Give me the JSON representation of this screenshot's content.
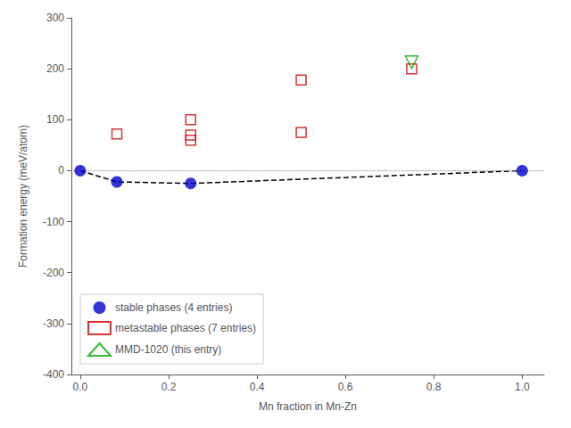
{
  "chart_data": {
    "type": "scatter",
    "xlabel": "Mn fraction in Mn-Zn",
    "ylabel": "Formation energy (meV/atom)",
    "xlim": [
      -0.02,
      1.05
    ],
    "ylim": [
      -400,
      300
    ],
    "xticks": [
      {
        "value": 0.0,
        "label": "0.0"
      },
      0.2,
      0.4,
      0.6,
      0.8,
      {
        "value": 1.0,
        "label": "1.0"
      }
    ],
    "yticks": [
      -400,
      -300,
      -200,
      -100,
      0,
      100,
      200,
      300
    ],
    "grid": false,
    "legend": "lower left",
    "hlines": [
      {
        "y": 0,
        "color": "gray",
        "line_style": "dotted"
      }
    ],
    "series": [
      {
        "type": "line",
        "color": "black",
        "line_style": "dashed",
        "x": [
          0.0,
          0.083,
          0.25,
          1.0
        ],
        "values": [
          0.0,
          -22.0,
          -25.0,
          0.0
        ]
      },
      {
        "name": "stable phases (4 entries)",
        "type": "scatter",
        "color": "#0000cc",
        "marker": "circle",
        "x": [
          0.0,
          0.083,
          0.25,
          1.0
        ],
        "values": [
          0.0,
          -22.0,
          -25.0,
          0.0
        ]
      },
      {
        "name": "metastable phases (7 entries)",
        "type": "scatter",
        "color": "#cc0000",
        "marker": "open_square",
        "x": [
          0.083,
          0.25,
          0.25,
          0.25,
          0.5,
          0.5,
          0.75
        ],
        "values": [
          72.0,
          100.0,
          70.0,
          60.0,
          178.0,
          75.0,
          200.0
        ]
      },
      {
        "name": "MMD-1020 (this entry)",
        "type": "scatter",
        "color": "#00aa00",
        "marker": "open_triangle_down",
        "x": [
          0.75
        ],
        "values": [
          213.0
        ]
      }
    ]
  }
}
